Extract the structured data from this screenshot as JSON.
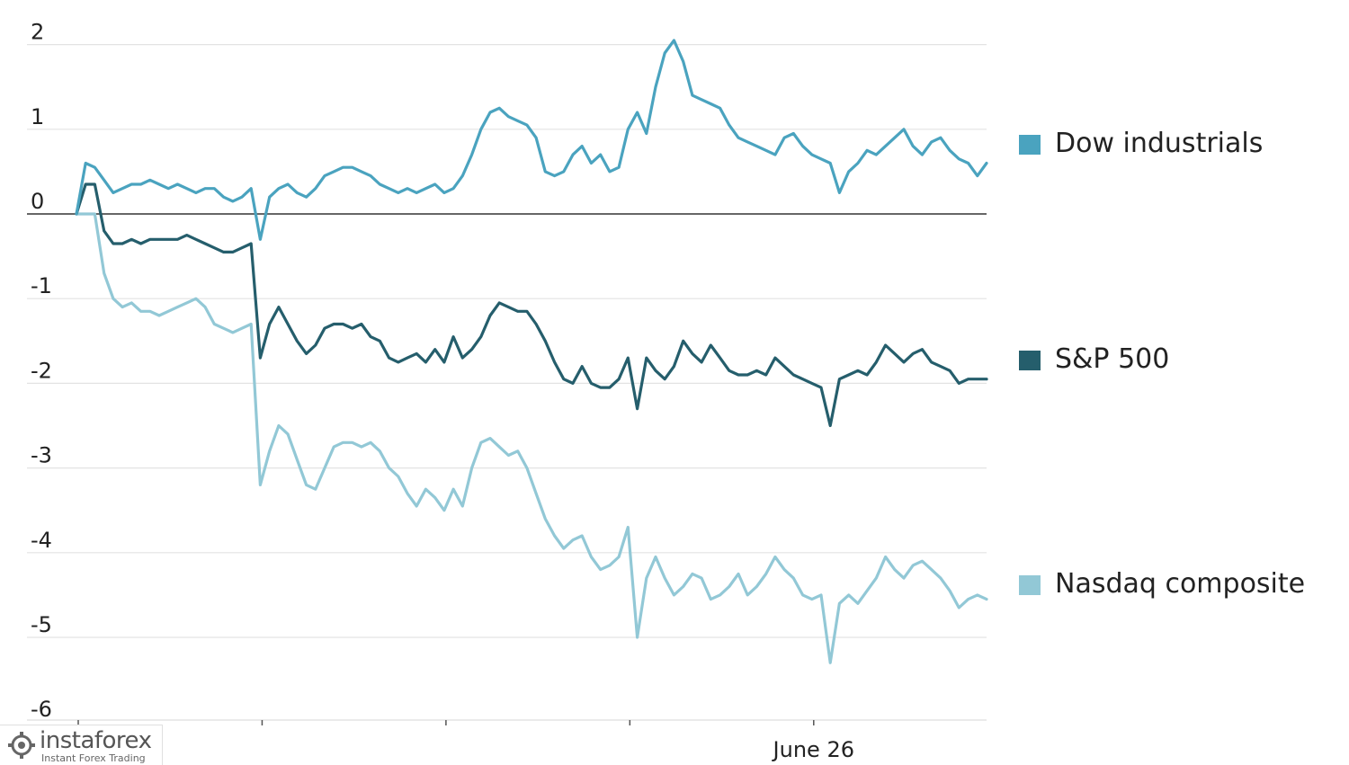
{
  "chart_data": {
    "type": "line",
    "title": "",
    "xlabel": "",
    "ylabel": "",
    "ylim": [
      -6,
      2.1
    ],
    "yticks": [
      2,
      1,
      0,
      -1,
      -2,
      -3,
      -4,
      -5,
      -6
    ],
    "ytick_labels": [
      "2",
      "1",
      "0",
      "-1",
      "-2",
      "-3",
      "-4",
      "-5",
      "-6"
    ],
    "x_count": 100,
    "x_tick_positions": [
      0,
      20,
      40,
      60,
      80
    ],
    "x_tick_labels": [
      "",
      "",
      "",
      "",
      "June 26"
    ],
    "grid": "horizontal",
    "legend": "right",
    "series": [
      {
        "name": "Dow industrials",
        "color": "#4aa3bf",
        "values": [
          0.0,
          0.6,
          0.55,
          0.4,
          0.25,
          0.3,
          0.35,
          0.35,
          0.4,
          0.35,
          0.3,
          0.35,
          0.3,
          0.25,
          0.3,
          0.3,
          0.2,
          0.15,
          0.2,
          0.3,
          -0.3,
          0.2,
          0.3,
          0.35,
          0.25,
          0.2,
          0.3,
          0.45,
          0.5,
          0.55,
          0.55,
          0.5,
          0.45,
          0.35,
          0.3,
          0.25,
          0.3,
          0.25,
          0.3,
          0.35,
          0.25,
          0.3,
          0.45,
          0.7,
          1.0,
          1.2,
          1.25,
          1.15,
          1.1,
          1.05,
          0.9,
          0.5,
          0.45,
          0.5,
          0.7,
          0.8,
          0.6,
          0.7,
          0.5,
          0.55,
          1.0,
          1.2,
          0.95,
          1.5,
          1.9,
          2.05,
          1.8,
          1.4,
          1.35,
          1.3,
          1.25,
          1.05,
          0.9,
          0.85,
          0.8,
          0.75,
          0.7,
          0.9,
          0.95,
          0.8,
          0.7,
          0.65,
          0.6,
          0.25,
          0.5,
          0.6,
          0.75,
          0.7,
          0.8,
          0.9,
          1.0,
          0.8,
          0.7,
          0.85,
          0.9,
          0.75,
          0.65,
          0.6,
          0.45,
          0.6
        ]
      },
      {
        "name": "S&P 500",
        "color": "#255e6c",
        "values": [
          0.0,
          0.35,
          0.35,
          -0.2,
          -0.35,
          -0.35,
          -0.3,
          -0.35,
          -0.3,
          -0.3,
          -0.3,
          -0.3,
          -0.25,
          -0.3,
          -0.35,
          -0.4,
          -0.45,
          -0.45,
          -0.4,
          -0.35,
          -1.7,
          -1.3,
          -1.1,
          -1.3,
          -1.5,
          -1.65,
          -1.55,
          -1.35,
          -1.3,
          -1.3,
          -1.35,
          -1.3,
          -1.45,
          -1.5,
          -1.7,
          -1.75,
          -1.7,
          -1.65,
          -1.75,
          -1.6,
          -1.75,
          -1.45,
          -1.7,
          -1.6,
          -1.45,
          -1.2,
          -1.05,
          -1.1,
          -1.15,
          -1.15,
          -1.3,
          -1.5,
          -1.75,
          -1.95,
          -2.0,
          -1.8,
          -2.0,
          -2.05,
          -2.05,
          -1.95,
          -1.7,
          -2.3,
          -1.7,
          -1.85,
          -1.95,
          -1.8,
          -1.5,
          -1.65,
          -1.75,
          -1.55,
          -1.7,
          -1.85,
          -1.9,
          -1.9,
          -1.85,
          -1.9,
          -1.7,
          -1.8,
          -1.9,
          -1.95,
          -2.0,
          -2.05,
          -2.5,
          -1.95,
          -1.9,
          -1.85,
          -1.9,
          -1.75,
          -1.55,
          -1.65,
          -1.75,
          -1.65,
          -1.6,
          -1.75,
          -1.8,
          -1.85,
          -2.0,
          -1.95,
          -1.95,
          -1.95
        ]
      },
      {
        "name": "Nasdaq composite",
        "color": "#92c8d6",
        "values": [
          0.0,
          0.0,
          0.0,
          -0.7,
          -1.0,
          -1.1,
          -1.05,
          -1.15,
          -1.15,
          -1.2,
          -1.15,
          -1.1,
          -1.05,
          -1.0,
          -1.1,
          -1.3,
          -1.35,
          -1.4,
          -1.35,
          -1.3,
          -3.2,
          -2.8,
          -2.5,
          -2.6,
          -2.9,
          -3.2,
          -3.25,
          -3.0,
          -2.75,
          -2.7,
          -2.7,
          -2.75,
          -2.7,
          -2.8,
          -3.0,
          -3.1,
          -3.3,
          -3.45,
          -3.25,
          -3.35,
          -3.5,
          -3.25,
          -3.45,
          -3.0,
          -2.7,
          -2.65,
          -2.75,
          -2.85,
          -2.8,
          -3.0,
          -3.3,
          -3.6,
          -3.8,
          -3.95,
          -3.85,
          -3.8,
          -4.05,
          -4.2,
          -4.15,
          -4.05,
          -3.7,
          -5.0,
          -4.3,
          -4.05,
          -4.3,
          -4.5,
          -4.4,
          -4.25,
          -4.3,
          -4.55,
          -4.5,
          -4.4,
          -4.25,
          -4.5,
          -4.4,
          -4.25,
          -4.05,
          -4.2,
          -4.3,
          -4.5,
          -4.55,
          -4.5,
          -5.3,
          -4.6,
          -4.5,
          -4.6,
          -4.45,
          -4.3,
          -4.05,
          -4.2,
          -4.3,
          -4.15,
          -4.1,
          -4.2,
          -4.3,
          -4.45,
          -4.65,
          -4.55,
          -4.5,
          -4.55
        ]
      }
    ]
  }
}
